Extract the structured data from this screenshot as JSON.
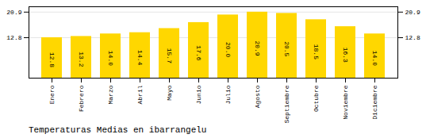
{
  "chart_data": {
    "type": "bar",
    "title": "Temperaturas Medias en ibarrangelu",
    "categories": [
      "Enero",
      "Febrero",
      "Marzo",
      "Abril",
      "Mayo",
      "Junio",
      "Julio",
      "Agosto",
      "Septiembre",
      "Octubre",
      "Noviembre",
      "Diciembre"
    ],
    "values": [
      12.8,
      13.2,
      14.0,
      14.4,
      15.7,
      17.6,
      20.0,
      20.9,
      20.5,
      18.5,
      16.3,
      14.0
    ],
    "value_labels": [
      "12.8",
      "13.2",
      "14.0",
      "14.4",
      "15.7",
      "17.6",
      "20.0",
      "20.9",
      "20.5",
      "18.5",
      "16.3",
      "14.0"
    ],
    "color": "#FFD700",
    "ylim": [
      0,
      22.6
    ],
    "yticks": [
      12.8,
      20.9
    ],
    "grid": true,
    "data_labels": true
  }
}
